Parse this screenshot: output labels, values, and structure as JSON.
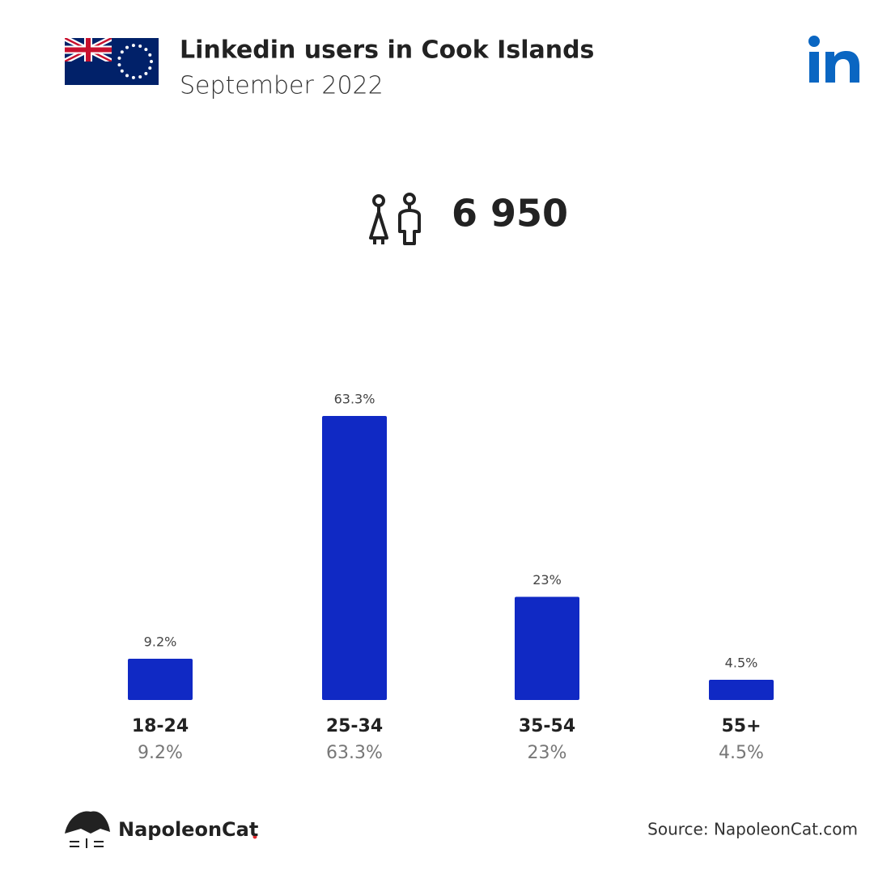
{
  "chart_data": {
    "type": "bar",
    "title": "Linkedin users in Cook Islands",
    "subtitle": "September 2022",
    "total": {
      "value": 6950,
      "label": "6 950"
    },
    "categories": [
      "18-24",
      "25-34",
      "35-54",
      "55+"
    ],
    "values": [
      9.2,
      63.3,
      23,
      4.5
    ],
    "value_labels": [
      "9.2%",
      "63.3%",
      "23%",
      "4.5%"
    ],
    "color": "#1029c4"
  },
  "footer": {
    "brand": "NapoleonCat",
    "source": "Source: NapoleonCat.com"
  }
}
